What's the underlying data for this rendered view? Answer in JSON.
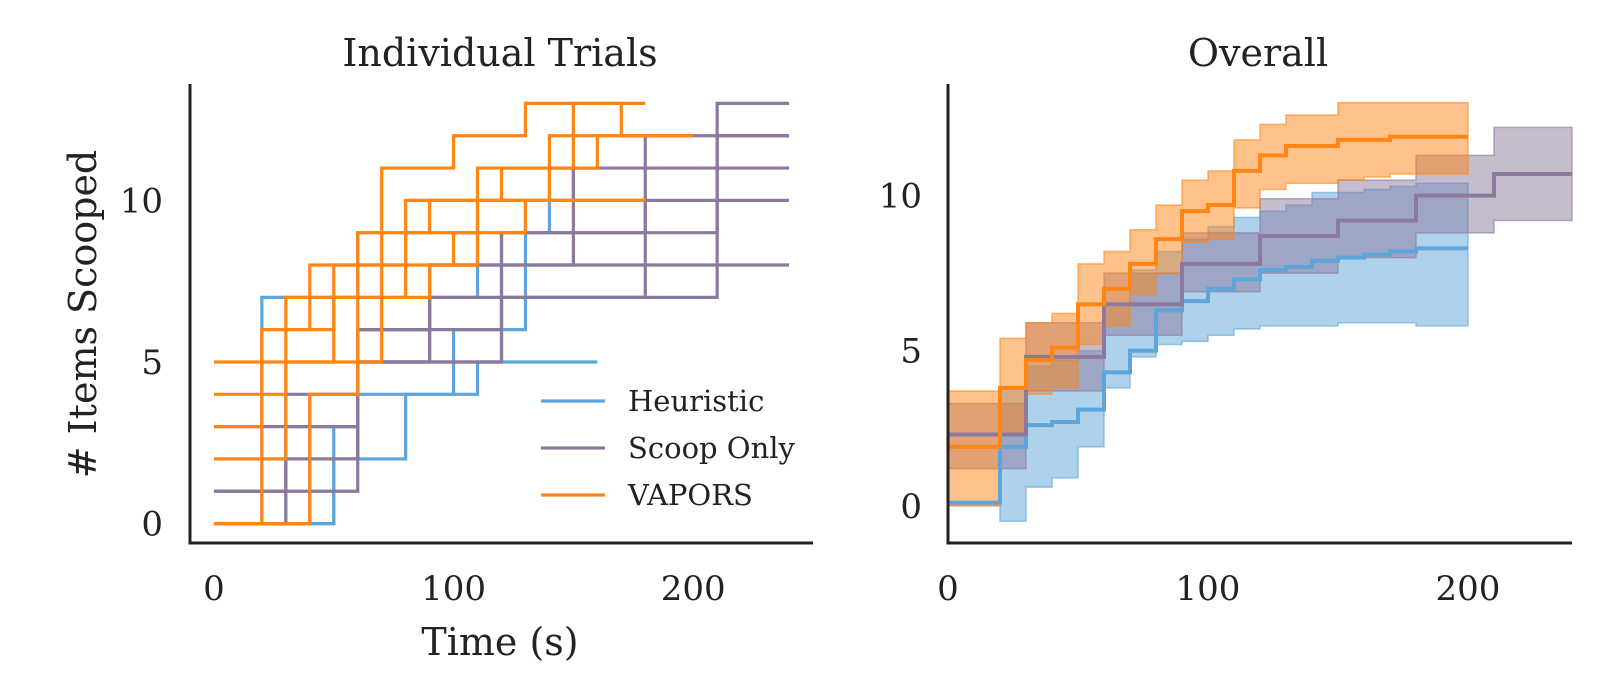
{
  "figure": {
    "ylabel": "# Items Scooped",
    "xlabel": "Time (s)"
  },
  "chart_data": [
    {
      "type": "line",
      "title": "Individual Trials",
      "xlabel": "Time (s)",
      "ylabel": "# Items Scooped",
      "xlim": [
        -10,
        250
      ],
      "ylim": [
        -0.6,
        13.6
      ],
      "xticks": [
        0,
        100,
        200
      ],
      "yticks": [
        0,
        5,
        10
      ],
      "legend": {
        "location": "lower-right",
        "entries": [
          "Heuristic",
          "Scoop Only",
          "VAPORS"
        ]
      },
      "series": [
        {
          "name": "Heuristic",
          "color": "#5DA5DA",
          "trials": [
            {
              "steps": [
                [
                  0,
                  0
                ],
                [
                  20,
                  7
                ],
                [
                  60,
                  9
                ],
                [
                  100,
                  9
                ],
                [
                  140,
                  11
                ],
                [
                  160,
                  11
                ]
              ]
            },
            {
              "steps": [
                [
                  0,
                  0
                ],
                [
                  30,
                  3
                ],
                [
                  60,
                  4
                ],
                [
                  100,
                  6
                ],
                [
                  130,
                  10
                ],
                [
                  150,
                  11
                ]
              ]
            },
            {
              "steps": [
                [
                  0,
                  0
                ],
                [
                  50,
                  2
                ],
                [
                  80,
                  4
                ],
                [
                  110,
                  5
                ],
                [
                  160,
                  5
                ]
              ]
            },
            {
              "steps": [
                [
                  0,
                  0
                ],
                [
                  50,
                  3
                ],
                [
                  60,
                  6
                ],
                [
                  90,
                  7
                ],
                [
                  110,
                  9
                ]
              ]
            }
          ]
        },
        {
          "name": "Scoop Only",
          "color": "#8C799E",
          "trials": [
            {
              "steps": [
                [
                  0,
                  0
                ],
                [
                  30,
                  2
                ],
                [
                  60,
                  5
                ],
                [
                  90,
                  7
                ],
                [
                  120,
                  9
                ],
                [
                  180,
                  10
                ],
                [
                  210,
                  12
                ],
                [
                  240,
                  12
                ]
              ]
            },
            {
              "steps": [
                [
                  0,
                  1
                ],
                [
                  30,
                  4
                ],
                [
                  60,
                  6
                ],
                [
                  120,
                  7
                ],
                [
                  150,
                  7
                ],
                [
                  210,
                  8
                ],
                [
                  240,
                  8
                ]
              ]
            },
            {
              "steps": [
                [
                  0,
                  0
                ],
                [
                  40,
                  4
                ],
                [
                  60,
                  5
                ],
                [
                  90,
                  8
                ],
                [
                  120,
                  9
                ],
                [
                  150,
                  11
                ],
                [
                  210,
                  13
                ],
                [
                  240,
                  13
                ]
              ]
            },
            {
              "steps": [
                [
                  0,
                  2
                ],
                [
                  60,
                  5
                ],
                [
                  120,
                  7
                ],
                [
                  180,
                  8
                ],
                [
                  210,
                  10
                ],
                [
                  240,
                  10
                ]
              ]
            },
            {
              "steps": [
                [
                  0,
                  3
                ],
                [
                  60,
                  5
                ],
                [
                  120,
                  8
                ],
                [
                  180,
                  12
                ],
                [
                  240,
                  12
                ]
              ]
            },
            {
              "steps": [
                [
                  0,
                  1
                ],
                [
                  60,
                  6
                ],
                [
                  90,
                  8
                ],
                [
                  150,
                  9
                ],
                [
                  210,
                  11
                ],
                [
                  240,
                  11
                ]
              ]
            }
          ]
        },
        {
          "name": "VAPORS",
          "color": "#FF8515",
          "trials": [
            {
              "steps": [
                [
                  0,
                  5
                ],
                [
                  20,
                  6
                ],
                [
                  40,
                  8
                ],
                [
                  70,
                  11
                ],
                [
                  100,
                  12
                ],
                [
                  130,
                  13
                ],
                [
                  180,
                  13
                ]
              ]
            },
            {
              "steps": [
                [
                  0,
                  0
                ],
                [
                  20,
                  5
                ],
                [
                  50,
                  8
                ],
                [
                  80,
                  10
                ],
                [
                  110,
                  11
                ],
                [
                  150,
                  13
                ],
                [
                  170,
                  12
                ],
                [
                  200,
                  12
                ]
              ]
            },
            {
              "steps": [
                [
                  0,
                  4
                ],
                [
                  30,
                  7
                ],
                [
                  60,
                  9
                ],
                [
                  90,
                  10
                ],
                [
                  120,
                  11
                ],
                [
                  160,
                  12
                ],
                [
                  180,
                  12
                ]
              ]
            },
            {
              "steps": [
                [
                  0,
                  3
                ],
                [
                  20,
                  6
                ],
                [
                  50,
                  7
                ],
                [
                  80,
                  9
                ],
                [
                  110,
                  10
                ],
                [
                  140,
                  12
                ],
                [
                  200,
                  12
                ]
              ]
            },
            {
              "steps": [
                [
                  0,
                  2
                ],
                [
                  30,
                  5
                ],
                [
                  70,
                  8
                ],
                [
                  100,
                  9
                ],
                [
                  130,
                  10
                ],
                [
                  180,
                  10
                ]
              ]
            },
            {
              "steps": [
                [
                  0,
                  0
                ],
                [
                  40,
                  4
                ],
                [
                  60,
                  7
                ],
                [
                  90,
                  8
                ],
                [
                  110,
                  10
                ],
                [
                  180,
                  10
                ]
              ]
            }
          ]
        }
      ]
    },
    {
      "type": "area",
      "title": "Overall",
      "xlim": [
        0,
        240
      ],
      "ylim": [
        -1.2,
        13.6
      ],
      "xticks": [
        0,
        100,
        200
      ],
      "yticks": [
        0,
        5,
        10
      ],
      "series": [
        {
          "name": "Heuristic",
          "color": "#5DA5DA",
          "x": [
            0,
            20,
            30,
            40,
            50,
            60,
            70,
            80,
            90,
            100,
            110,
            120,
            130,
            140,
            150,
            160,
            170,
            180,
            190,
            200
          ],
          "mean": [
            0.1,
            1.9,
            2.6,
            2.7,
            3.1,
            4.3,
            5.0,
            6.3,
            6.6,
            7.0,
            7.3,
            7.6,
            7.7,
            7.9,
            8.0,
            8.1,
            8.2,
            8.3,
            8.3,
            8.3
          ],
          "lower": [
            0.0,
            -0.5,
            0.6,
            0.9,
            1.9,
            3.8,
            4.8,
            5.2,
            5.3,
            5.5,
            5.7,
            5.8,
            5.8,
            5.8,
            5.9,
            5.9,
            5.9,
            5.8,
            5.8,
            5.8
          ],
          "upper": [
            0.1,
            3.8,
            4.5,
            4.7,
            5.0,
            6.5,
            7.6,
            8.2,
            8.6,
            9.0,
            9.3,
            9.5,
            9.7,
            10.1,
            10.1,
            10.2,
            10.3,
            10.4,
            10.4,
            10.4
          ]
        },
        {
          "name": "Scoop Only",
          "color": "#8C799E",
          "x": [
            0,
            20,
            30,
            40,
            50,
            60,
            70,
            80,
            90,
            100,
            110,
            120,
            130,
            140,
            150,
            160,
            170,
            180,
            190,
            200,
            210,
            220,
            230,
            240
          ],
          "mean": [
            2.3,
            2.3,
            4.8,
            4.8,
            4.8,
            6.5,
            6.5,
            6.5,
            7.8,
            7.8,
            7.8,
            8.7,
            8.7,
            8.7,
            9.2,
            9.2,
            9.2,
            10.0,
            10.0,
            10.0,
            10.7,
            10.7,
            10.7,
            10.7
          ],
          "lower": [
            1.2,
            1.2,
            3.7,
            3.7,
            3.7,
            5.5,
            5.5,
            5.5,
            6.9,
            6.9,
            6.9,
            7.5,
            7.5,
            7.5,
            8.0,
            8.0,
            8.0,
            8.8,
            8.8,
            8.8,
            9.2,
            9.2,
            9.2,
            9.2
          ],
          "upper": [
            3.3,
            3.3,
            5.9,
            5.9,
            5.9,
            7.5,
            7.5,
            7.5,
            8.8,
            8.8,
            8.8,
            9.9,
            9.9,
            9.9,
            10.5,
            10.5,
            10.5,
            11.3,
            11.3,
            11.3,
            12.2,
            12.2,
            12.2,
            12.2
          ]
        },
        {
          "name": "VAPORS",
          "color": "#FF8515",
          "x": [
            0,
            20,
            30,
            40,
            50,
            60,
            70,
            80,
            90,
            100,
            110,
            120,
            130,
            140,
            150,
            160,
            170,
            180,
            190,
            200
          ],
          "mean": [
            1.9,
            3.8,
            4.7,
            5.1,
            6.5,
            7.0,
            7.8,
            8.6,
            9.5,
            9.7,
            10.8,
            11.3,
            11.6,
            11.6,
            11.8,
            11.8,
            11.9,
            11.9,
            11.9,
            11.9
          ],
          "lower": [
            0.0,
            2.3,
            3.6,
            3.8,
            5.2,
            5.8,
            6.8,
            7.5,
            8.5,
            8.6,
            9.6,
            10.2,
            10.4,
            10.4,
            10.5,
            10.6,
            10.7,
            10.7,
            10.7,
            10.7
          ],
          "upper": [
            3.7,
            5.4,
            5.9,
            6.2,
            7.8,
            8.2,
            8.9,
            9.7,
            10.5,
            10.8,
            11.8,
            12.3,
            12.6,
            12.6,
            13.0,
            13.0,
            13.0,
            13.0,
            13.0,
            13.0
          ]
        }
      ]
    }
  ]
}
